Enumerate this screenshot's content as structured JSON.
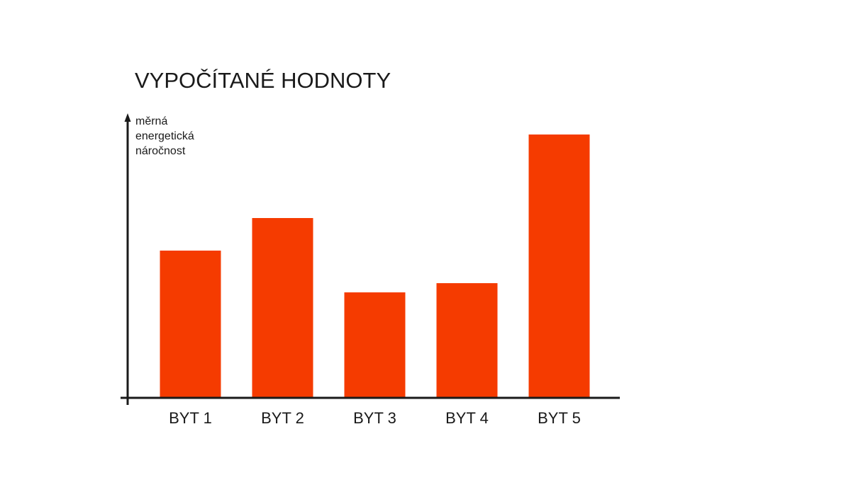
{
  "chart_data": {
    "type": "bar",
    "title": "VYPOČÍTANÉ HODNOTY",
    "ylabel_lines": [
      "měrná",
      "energetická",
      "náročnost"
    ],
    "xlabel": "",
    "categories": [
      "BYT 1",
      "BYT 2",
      "BYT 3",
      "BYT 4",
      "BYT 5"
    ],
    "values": [
      208,
      254,
      149,
      162,
      372
    ],
    "ylim": [
      0,
      400
    ],
    "grid": false,
    "legend": "none",
    "y_tick_labels": false,
    "colors": {
      "bar": "#f53b00",
      "axis": "#1a1a1a",
      "text": "#1a1a1a"
    }
  }
}
